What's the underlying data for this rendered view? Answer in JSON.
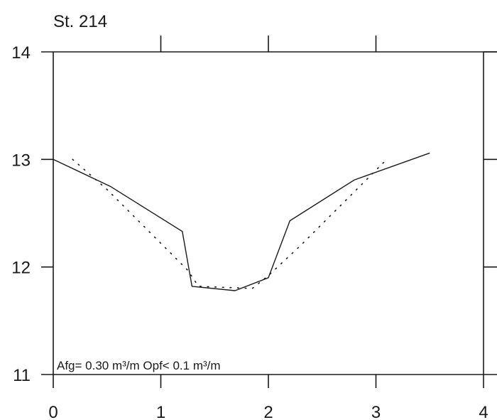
{
  "chart_data": {
    "type": "line",
    "title": "St. 214",
    "xlabel": "",
    "ylabel": "",
    "xlim": [
      0,
      4
    ],
    "ylim": [
      11,
      14
    ],
    "x_ticks": [
      "0",
      "1",
      "2",
      "3",
      "4"
    ],
    "y_ticks": [
      "11",
      "12",
      "13",
      "14"
    ],
    "grid": false,
    "annotation": "Afg= 0.30 m³/m  Opf< 0.1 m³/m",
    "series": [
      {
        "style": "solid",
        "points": [
          [
            0,
            13.0
          ],
          [
            0.53,
            12.75
          ],
          [
            1.2,
            12.33
          ],
          [
            1.29,
            11.82
          ],
          [
            1.69,
            11.78
          ],
          [
            2.0,
            11.9
          ],
          [
            2.2,
            12.43
          ],
          [
            2.8,
            12.81
          ],
          [
            3.5,
            13.06
          ]
        ]
      },
      {
        "style": "dotted",
        "points": [
          [
            0.18,
            13.0
          ],
          [
            0.5,
            12.72
          ],
          [
            1.25,
            11.97
          ],
          [
            1.35,
            11.82
          ],
          [
            1.85,
            11.8
          ],
          [
            2.0,
            11.92
          ],
          [
            2.3,
            12.2
          ],
          [
            2.8,
            12.7
          ],
          [
            3.1,
            13.0
          ]
        ]
      }
    ],
    "colors": {
      "line": "#1a1a1a",
      "background": "#ffffff"
    }
  }
}
